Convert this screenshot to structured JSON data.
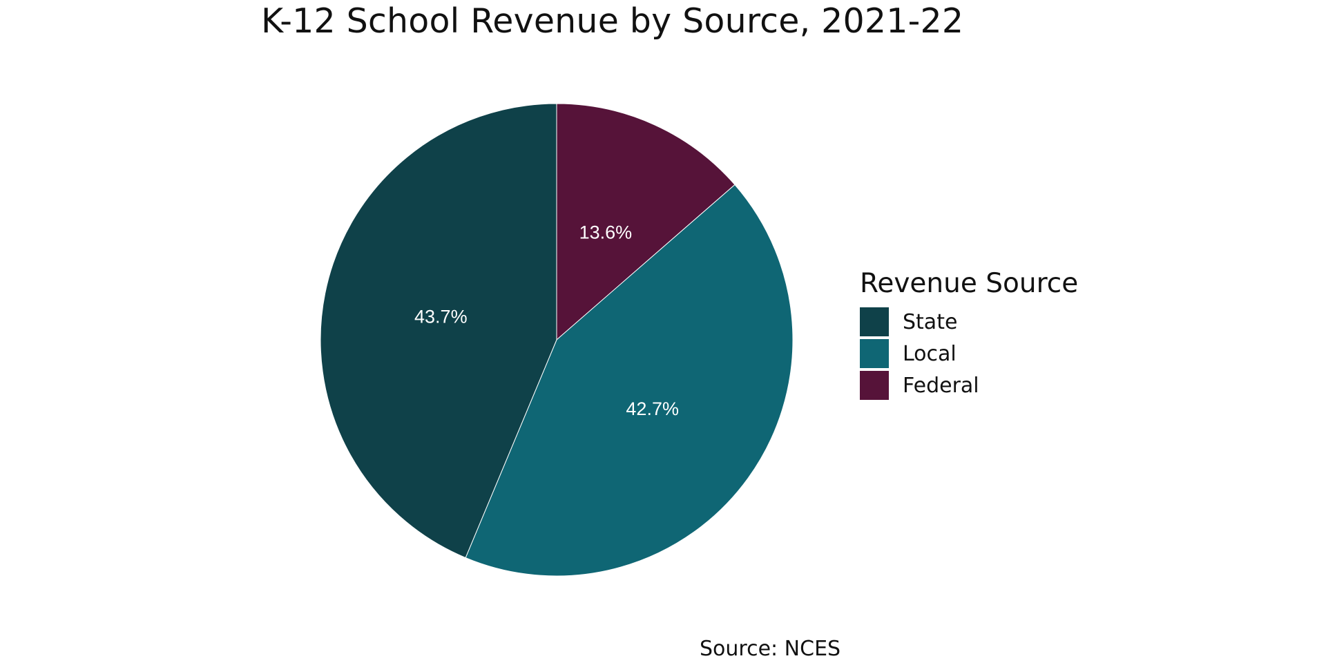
{
  "chart_data": {
    "type": "pie",
    "title": "K-12 School Revenue by Source, 2021-22",
    "legend_title": "Revenue Source",
    "legend_position": "right",
    "caption": "Source: NCES",
    "slices": [
      {
        "name": "State",
        "value": 43.7,
        "label": "43.7%",
        "color": "#0f4149"
      },
      {
        "name": "Local",
        "value": 42.7,
        "label": "42.7%",
        "color": "#0f6674"
      },
      {
        "name": "Federal",
        "value": 13.6,
        "label": "13.6%",
        "color": "#561339"
      }
    ]
  }
}
